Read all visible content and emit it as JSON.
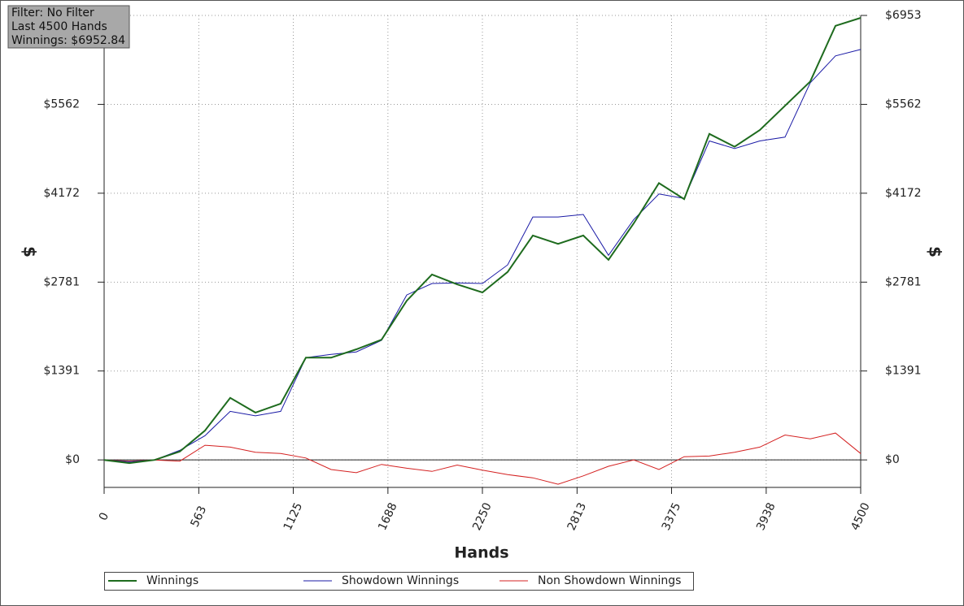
{
  "chart_data": {
    "type": "line",
    "info": [
      "Filter: No Filter",
      "Last 4500 Hands",
      "Winnings: $6952.84"
    ],
    "xlabel": "Hands",
    "ylabel": "$",
    "y2label": "$",
    "x": [
      0,
      150,
      300,
      450,
      600,
      750,
      900,
      1050,
      1200,
      1350,
      1500,
      1650,
      1800,
      1950,
      2100,
      2250,
      2400,
      2550,
      2700,
      2850,
      3000,
      3150,
      3300,
      3450,
      3600,
      3750,
      3900,
      4050,
      4200,
      4350,
      4500
    ],
    "series": [
      {
        "name": "Winnings",
        "color": "#1e6b1e",
        "values": [
          0,
          -50,
          0,
          130,
          460,
          970,
          740,
          880,
          1600,
          1600,
          1730,
          1880,
          2490,
          2900,
          2745,
          2620,
          2940,
          3510,
          3380,
          3510,
          3130,
          3700,
          4330,
          4080,
          5100,
          4900,
          5160,
          5540,
          5920,
          6790,
          6915
        ]
      },
      {
        "name": "Showdown Winnings",
        "color": "#1a1aa6",
        "values": [
          0,
          -30,
          0,
          150,
          380,
          760,
          690,
          760,
          1600,
          1650,
          1690,
          1870,
          2580,
          2760,
          2770,
          2760,
          3050,
          3800,
          3800,
          3840,
          3200,
          3760,
          4160,
          4090,
          4990,
          4870,
          4990,
          5050,
          5900,
          6320,
          6420
        ]
      },
      {
        "name": "Non Showdown Winnings",
        "color": "#d42020",
        "values": [
          0,
          -20,
          0,
          -20,
          230,
          200,
          120,
          100,
          30,
          -150,
          -200,
          -70,
          -130,
          -180,
          -80,
          -160,
          -230,
          -280,
          -380,
          -250,
          -100,
          0,
          -150,
          50,
          60,
          120,
          200,
          390,
          330,
          420,
          100
        ]
      }
    ],
    "xlim": [
      0,
      4500
    ],
    "xticks": [
      0,
      563,
      1125,
      1688,
      2250,
      2813,
      3375,
      3938,
      4500
    ],
    "ylim": [
      -430,
      6953
    ],
    "yticks": [
      {
        "value": 0,
        "label": "$0"
      },
      {
        "value": 1391,
        "label": "$1391"
      },
      {
        "value": 2781,
        "label": "$2781"
      },
      {
        "value": 4172,
        "label": "$4172"
      },
      {
        "value": 5562,
        "label": "$5562"
      },
      {
        "value": 6953,
        "label": "$6953"
      }
    ],
    "grid": true
  }
}
